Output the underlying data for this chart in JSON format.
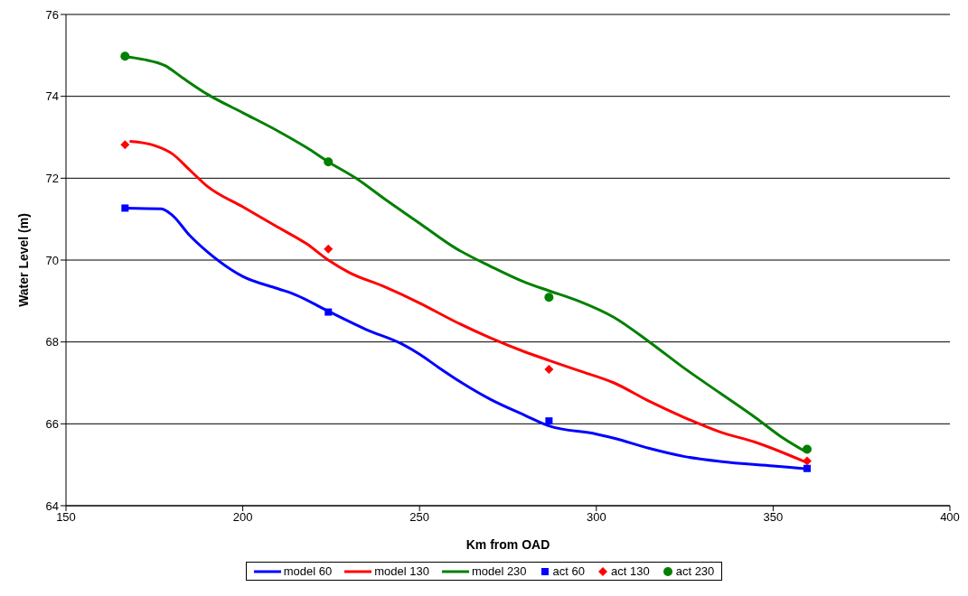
{
  "chart_data": {
    "type": "line",
    "xlabel": "Km from OAD",
    "ylabel": "Water Level (m)",
    "xlim": [
      150,
      400
    ],
    "xticks": [
      150,
      200,
      250,
      300,
      350,
      400
    ],
    "ylim": [
      64,
      76
    ],
    "yticks": [
      64,
      66,
      68,
      70,
      72,
      74,
      76
    ],
    "grid": "y",
    "legend": "bottom",
    "line_style": "solid",
    "series": [
      {
        "name": "model 60",
        "color": "#0000ff",
        "marker": "none",
        "x": [
          166.7,
          177,
          180,
          185,
          190,
          200,
          210,
          215,
          224.2,
          235,
          245,
          250,
          255,
          262,
          270,
          280,
          286.6,
          300,
          305,
          315,
          325,
          335,
          350,
          359.6
        ],
        "values": [
          71.27,
          71.25,
          71.1,
          70.6,
          70.2,
          69.6,
          69.3,
          69.15,
          68.75,
          68.3,
          67.95,
          67.7,
          67.4,
          67.0,
          66.6,
          66.2,
          65.95,
          65.75,
          65.65,
          65.4,
          65.2,
          65.08,
          64.97,
          64.9
        ]
      },
      {
        "name": "model 130",
        "color": "#ff0000",
        "marker": "none",
        "x": [
          168,
          175,
          180,
          185,
          190,
          200,
          210,
          218,
          224.2,
          230,
          240,
          250,
          260,
          270,
          280,
          286.6,
          295,
          305,
          315,
          325,
          335,
          345,
          359.6
        ],
        "values": [
          72.9,
          72.8,
          72.6,
          72.2,
          71.8,
          71.3,
          70.8,
          70.4,
          70.0,
          69.7,
          69.35,
          68.95,
          68.5,
          68.1,
          67.75,
          67.55,
          67.3,
          67.0,
          66.55,
          66.15,
          65.8,
          65.55,
          65.05
        ]
      },
      {
        "name": "model 230",
        "color": "#008000",
        "marker": "none",
        "x": [
          166.7,
          172,
          178,
          183,
          190,
          200,
          210,
          218,
          224.2,
          232,
          240,
          250,
          260,
          270,
          280,
          286.6,
          295,
          305,
          315,
          325,
          335,
          345,
          352,
          359.6
        ],
        "values": [
          74.97,
          74.9,
          74.75,
          74.45,
          74.05,
          73.6,
          73.15,
          72.75,
          72.4,
          72.0,
          71.5,
          70.9,
          70.3,
          69.85,
          69.45,
          69.25,
          69.0,
          68.6,
          68.0,
          67.35,
          66.75,
          66.15,
          65.7,
          65.3
        ]
      },
      {
        "name": "act 60",
        "color": "#0000ff",
        "type": "scatter",
        "marker": "square",
        "x": [
          166.7,
          224.2,
          286.6,
          359.6
        ],
        "values": [
          71.27,
          68.73,
          66.07,
          64.91
        ]
      },
      {
        "name": "act 130",
        "color": "#ff0000",
        "type": "scatter",
        "marker": "diamond",
        "x": [
          166.7,
          224.2,
          286.6,
          359.6
        ],
        "values": [
          72.82,
          70.27,
          67.33,
          65.09
        ]
      },
      {
        "name": "act 230",
        "color": "#008000",
        "type": "scatter",
        "marker": "circle",
        "x": [
          166.7,
          224.2,
          286.6,
          359.6
        ],
        "values": [
          74.98,
          72.4,
          69.09,
          65.38
        ]
      }
    ]
  }
}
